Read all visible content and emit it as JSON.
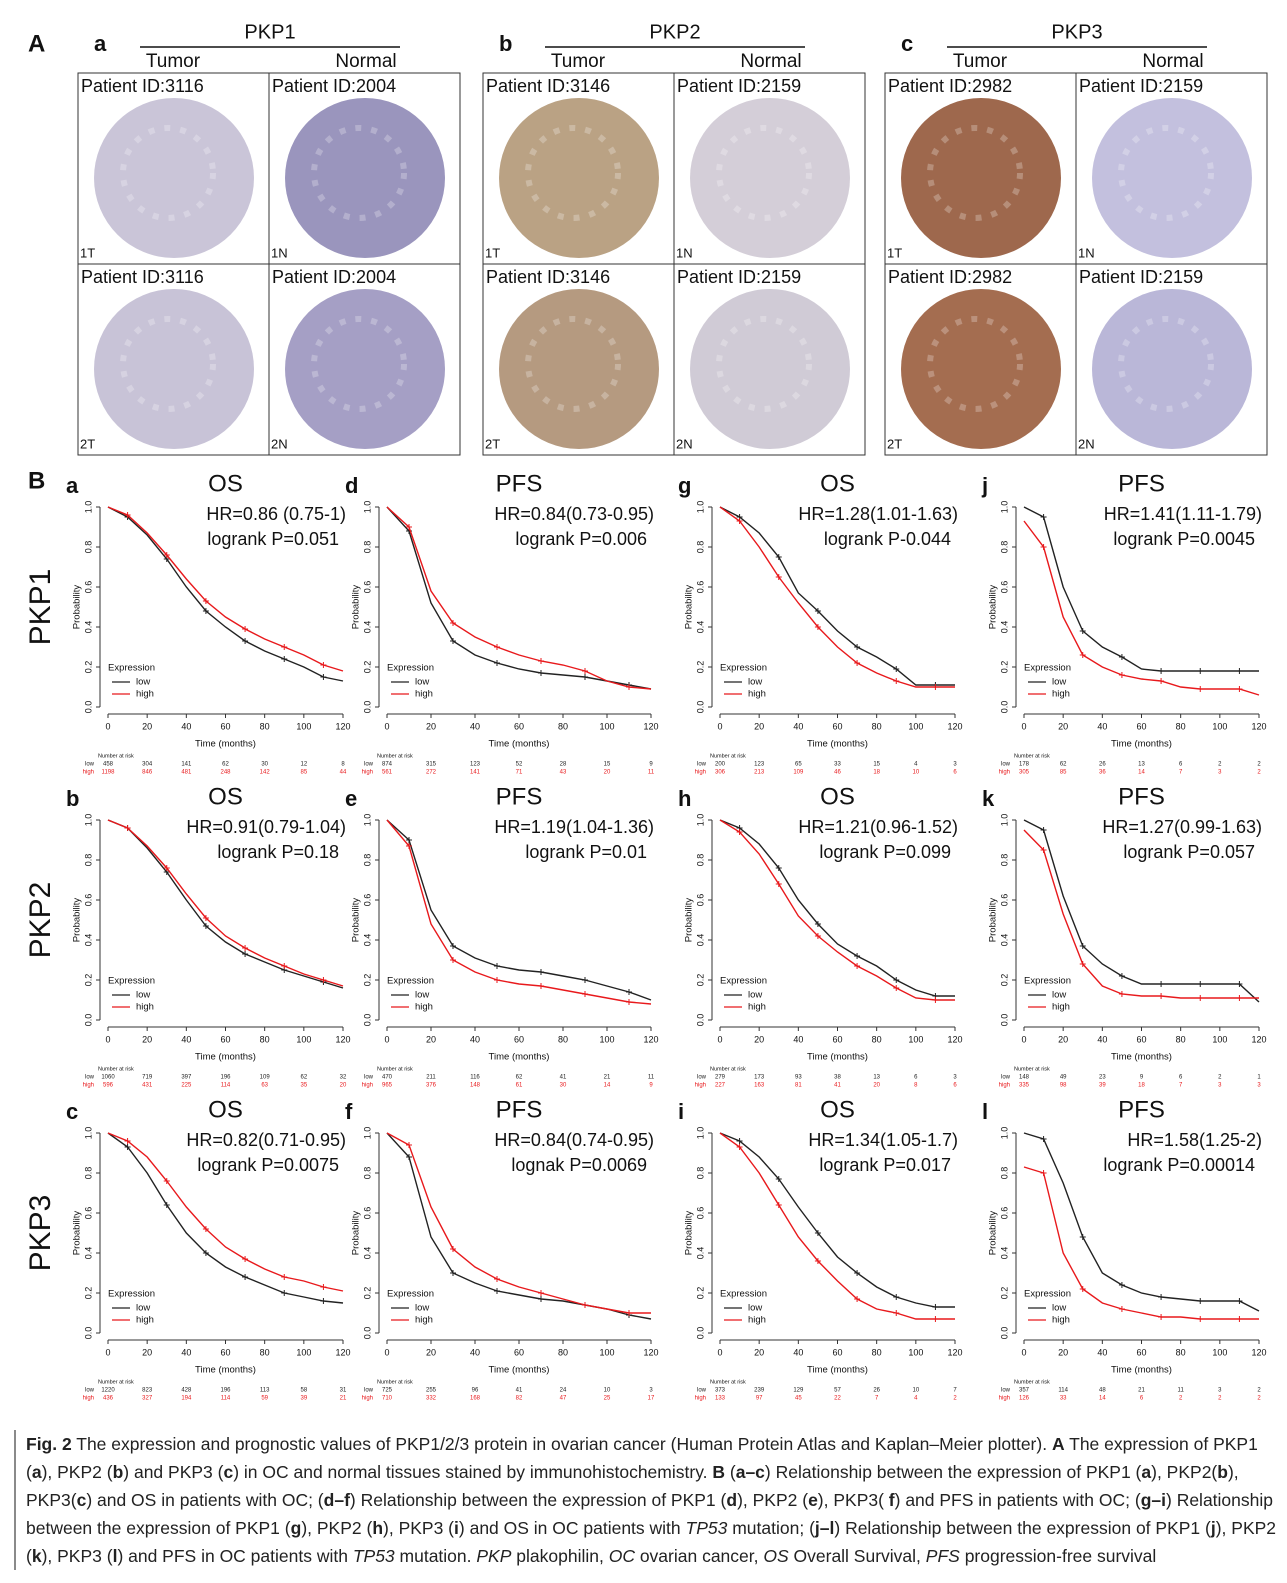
{
  "panel_A": {
    "label": "A",
    "groups": [
      {
        "letter": "a",
        "gene": "PKP1",
        "tumor": "Tumor",
        "normal": "Normal",
        "cells": [
          {
            "patient": "Patient ID:3116",
            "tag": "1T"
          },
          {
            "patient": "Patient ID:2004",
            "tag": "1N"
          },
          {
            "patient": "Patient ID:3116",
            "tag": "2T"
          },
          {
            "patient": "Patient ID:2004",
            "tag": "2N"
          }
        ]
      },
      {
        "letter": "b",
        "gene": "PKP2",
        "tumor": "Tumor",
        "normal": "Normal",
        "cells": [
          {
            "patient": "Patient ID:3146",
            "tag": "1T"
          },
          {
            "patient": "Patient ID:2159",
            "tag": "1N"
          },
          {
            "patient": "Patient ID:3146",
            "tag": "2T"
          },
          {
            "patient": "Patient ID:2159",
            "tag": "2N"
          }
        ]
      },
      {
        "letter": "c",
        "gene": "PKP3",
        "tumor": "Tumor",
        "normal": "Normal",
        "cells": [
          {
            "patient": "Patient ID:2982",
            "tag": "1T"
          },
          {
            "patient": "Patient ID:2159",
            "tag": "1N"
          },
          {
            "patient": "Patient ID:2982",
            "tag": "2T"
          },
          {
            "patient": "Patient ID:2159",
            "tag": "2N"
          }
        ]
      }
    ]
  },
  "panel_B": {
    "label": "B",
    "rows": [
      "PKP1",
      "PKP2",
      "PKP3"
    ]
  },
  "km_common": {
    "x_label": "Time (months)",
    "y_label": "Probability",
    "legend_title": "Expression",
    "risk_title": "Number at risk",
    "xlim": [
      0,
      120
    ],
    "ylim": [
      0,
      1
    ],
    "xticks": [
      0,
      20,
      40,
      60,
      80,
      100,
      120
    ],
    "yticks": [
      {
        "value": 0,
        "label": "0.0"
      },
      0.2,
      0.4,
      0.6,
      0.8,
      {
        "value": 1,
        "label": "1.0"
      }
    ],
    "x": [
      0,
      10,
      20,
      30,
      40,
      50,
      60,
      70,
      80,
      90,
      100,
      110,
      120
    ]
  },
  "chart_data": [
    {
      "type": "line",
      "letter": "a",
      "title": "OS",
      "hr": "HR=0.86 (0.75-1)",
      "p": "logrank P=0.051",
      "series": [
        {
          "name": "low",
          "color": "#222222",
          "values": [
            1,
            0.95,
            0.86,
            0.74,
            0.6,
            0.48,
            0.4,
            0.33,
            0.28,
            0.24,
            0.2,
            0.15,
            0.13
          ],
          "at_risk": [
            458,
            304,
            141,
            62,
            30,
            12,
            8
          ]
        },
        {
          "name": "high",
          "color": "#e8191c",
          "values": [
            1,
            0.96,
            0.87,
            0.76,
            0.64,
            0.53,
            0.45,
            0.39,
            0.34,
            0.3,
            0.26,
            0.21,
            0.18
          ],
          "at_risk": [
            1198,
            846,
            481,
            248,
            142,
            85,
            44
          ]
        }
      ]
    },
    {
      "type": "line",
      "letter": "d",
      "title": "PFS",
      "hr": "HR=0.84(0.73-0.95)",
      "p": "logrank P=0.006",
      "series": [
        {
          "name": "low",
          "color": "#222222",
          "values": [
            1,
            0.88,
            0.52,
            0.33,
            0.26,
            0.22,
            0.19,
            0.17,
            0.16,
            0.15,
            0.13,
            0.11,
            0.09
          ],
          "at_risk": [
            874,
            315,
            123,
            52,
            28,
            15,
            9
          ]
        },
        {
          "name": "high",
          "color": "#e8191c",
          "values": [
            1,
            0.9,
            0.58,
            0.42,
            0.35,
            0.3,
            0.26,
            0.23,
            0.21,
            0.18,
            0.13,
            0.1,
            0.09
          ],
          "at_risk": [
            561,
            272,
            141,
            71,
            43,
            20,
            11
          ]
        }
      ]
    },
    {
      "type": "line",
      "letter": "g",
      "title": "OS",
      "hr": "HR=1.28(1.01-1.63)",
      "p": "logrank P-0.044",
      "series": [
        {
          "name": "low",
          "color": "#222222",
          "values": [
            1,
            0.95,
            0.87,
            0.75,
            0.57,
            0.48,
            0.38,
            0.3,
            0.25,
            0.19,
            0.11,
            0.11,
            0.11
          ],
          "at_risk": [
            200,
            123,
            65,
            33,
            15,
            4,
            3
          ]
        },
        {
          "name": "high",
          "color": "#e8191c",
          "values": [
            1,
            0.93,
            0.8,
            0.65,
            0.52,
            0.4,
            0.3,
            0.22,
            0.17,
            0.13,
            0.1,
            0.1,
            0.1
          ],
          "at_risk": [
            306,
            213,
            109,
            46,
            18,
            10,
            6
          ]
        }
      ]
    },
    {
      "type": "line",
      "letter": "j",
      "title": "PFS",
      "hr": "HR=1.41(1.11-1.79)",
      "p": "logrank P=0.0045",
      "series": [
        {
          "name": "low",
          "color": "#222222",
          "values": [
            1,
            0.95,
            0.6,
            0.38,
            0.3,
            0.25,
            0.19,
            0.18,
            0.18,
            0.18,
            0.18,
            0.18,
            0.18
          ],
          "at_risk": [
            178,
            62,
            26,
            13,
            6,
            2,
            2
          ]
        },
        {
          "name": "high",
          "color": "#e8191c",
          "values": [
            0.93,
            0.8,
            0.45,
            0.26,
            0.2,
            0.16,
            0.14,
            0.13,
            0.1,
            0.09,
            0.09,
            0.09,
            0.06
          ],
          "at_risk": [
            305,
            85,
            36,
            14,
            7,
            3,
            2
          ]
        }
      ]
    },
    {
      "type": "line",
      "letter": "b",
      "title": "OS",
      "hr": "HR=0.91(0.79-1.04)",
      "p": "logrank P=0.18",
      "series": [
        {
          "name": "low",
          "color": "#222222",
          "values": [
            1,
            0.96,
            0.86,
            0.74,
            0.6,
            0.47,
            0.39,
            0.33,
            0.29,
            0.25,
            0.22,
            0.19,
            0.16
          ],
          "at_risk": [
            1060,
            719,
            397,
            196,
            109,
            62,
            32
          ]
        },
        {
          "name": "high",
          "color": "#e8191c",
          "values": [
            1,
            0.96,
            0.87,
            0.76,
            0.63,
            0.51,
            0.42,
            0.36,
            0.31,
            0.27,
            0.23,
            0.2,
            0.17
          ],
          "at_risk": [
            596,
            431,
            225,
            114,
            63,
            35,
            20
          ]
        }
      ]
    },
    {
      "type": "line",
      "letter": "e",
      "title": "PFS",
      "hr": "HR=1.19(1.04-1.36)",
      "p": "logrank P=0.01",
      "series": [
        {
          "name": "low",
          "color": "#222222",
          "values": [
            1,
            0.9,
            0.55,
            0.37,
            0.31,
            0.27,
            0.25,
            0.24,
            0.22,
            0.2,
            0.17,
            0.14,
            0.1
          ],
          "at_risk": [
            470,
            211,
            116,
            62,
            41,
            21,
            11
          ]
        },
        {
          "name": "high",
          "color": "#e8191c",
          "values": [
            1,
            0.87,
            0.48,
            0.3,
            0.24,
            0.2,
            0.18,
            0.17,
            0.15,
            0.13,
            0.11,
            0.09,
            0.08
          ],
          "at_risk": [
            965,
            376,
            148,
            61,
            30,
            14,
            9
          ]
        }
      ]
    },
    {
      "type": "line",
      "letter": "h",
      "title": "OS",
      "hr": "HR=1.21(0.96-1.52)",
      "p": "logrank P=0.099",
      "series": [
        {
          "name": "low",
          "color": "#222222",
          "values": [
            1,
            0.96,
            0.88,
            0.76,
            0.6,
            0.48,
            0.38,
            0.32,
            0.27,
            0.2,
            0.15,
            0.12,
            0.12
          ],
          "at_risk": [
            279,
            173,
            93,
            38,
            13,
            6,
            3
          ]
        },
        {
          "name": "high",
          "color": "#e8191c",
          "values": [
            1,
            0.94,
            0.83,
            0.68,
            0.52,
            0.42,
            0.34,
            0.27,
            0.22,
            0.16,
            0.11,
            0.1,
            0.1
          ],
          "at_risk": [
            227,
            163,
            81,
            41,
            20,
            8,
            6
          ]
        }
      ]
    },
    {
      "type": "line",
      "letter": "k",
      "title": "PFS",
      "hr": "HR=1.27(0.99-1.63)",
      "p": "logrank P=0.057",
      "series": [
        {
          "name": "low",
          "color": "#222222",
          "values": [
            1,
            0.95,
            0.62,
            0.37,
            0.28,
            0.22,
            0.18,
            0.18,
            0.18,
            0.18,
            0.18,
            0.18,
            0.09
          ],
          "at_risk": [
            148,
            49,
            23,
            9,
            6,
            2,
            1
          ]
        },
        {
          "name": "high",
          "color": "#e8191c",
          "values": [
            0.95,
            0.85,
            0.53,
            0.28,
            0.17,
            0.13,
            0.12,
            0.12,
            0.11,
            0.11,
            0.11,
            0.11,
            0.11
          ],
          "at_risk": [
            335,
            98,
            39,
            18,
            7,
            3,
            3
          ]
        }
      ]
    },
    {
      "type": "line",
      "letter": "c",
      "title": "OS",
      "hr": "HR=0.82(0.71-0.95)",
      "p": "logrank P=0.0075",
      "series": [
        {
          "name": "low",
          "color": "#222222",
          "values": [
            1,
            0.93,
            0.8,
            0.64,
            0.5,
            0.4,
            0.33,
            0.28,
            0.24,
            0.2,
            0.18,
            0.16,
            0.15
          ],
          "at_risk": [
            1220,
            823,
            428,
            196,
            113,
            58,
            31
          ]
        },
        {
          "name": "high",
          "color": "#e8191c",
          "values": [
            1,
            0.96,
            0.88,
            0.76,
            0.63,
            0.52,
            0.43,
            0.37,
            0.32,
            0.28,
            0.26,
            0.23,
            0.21
          ],
          "at_risk": [
            436,
            327,
            194,
            114,
            59,
            39,
            21
          ]
        }
      ]
    },
    {
      "type": "line",
      "letter": "f",
      "title": "PFS",
      "hr": "HR=0.84(0.74-0.95)",
      "p": "lognak P=0.0069",
      "series": [
        {
          "name": "low",
          "color": "#222222",
          "values": [
            1,
            0.88,
            0.48,
            0.3,
            0.25,
            0.21,
            0.19,
            0.17,
            0.16,
            0.14,
            0.12,
            0.09,
            0.07
          ],
          "at_risk": [
            725,
            255,
            96,
            41,
            24,
            10,
            3
          ]
        },
        {
          "name": "high",
          "color": "#e8191c",
          "values": [
            1,
            0.94,
            0.63,
            0.42,
            0.33,
            0.27,
            0.23,
            0.2,
            0.17,
            0.14,
            0.12,
            0.1,
            0.1
          ],
          "at_risk": [
            710,
            332,
            168,
            82,
            47,
            25,
            17
          ]
        }
      ]
    },
    {
      "type": "line",
      "letter": "i",
      "title": "OS",
      "hr": "HR=1.34(1.05-1.7)",
      "p": "logrank P=0.017",
      "series": [
        {
          "name": "low",
          "color": "#222222",
          "values": [
            1,
            0.96,
            0.88,
            0.77,
            0.63,
            0.5,
            0.38,
            0.3,
            0.23,
            0.18,
            0.15,
            0.13,
            0.13
          ],
          "at_risk": [
            373,
            239,
            129,
            57,
            26,
            10,
            7
          ]
        },
        {
          "name": "high",
          "color": "#e8191c",
          "values": [
            1,
            0.93,
            0.8,
            0.64,
            0.48,
            0.36,
            0.26,
            0.17,
            0.12,
            0.1,
            0.07,
            0.07,
            0.07
          ],
          "at_risk": [
            133,
            97,
            45,
            22,
            7,
            4,
            2
          ]
        }
      ]
    },
    {
      "type": "line",
      "letter": "l",
      "title": "PFS",
      "hr": "HR=1.58(1.25-2)",
      "p": "logrank P=0.00014",
      "series": [
        {
          "name": "low",
          "color": "#222222",
          "values": [
            1,
            0.97,
            0.75,
            0.48,
            0.3,
            0.24,
            0.2,
            0.18,
            0.17,
            0.16,
            0.16,
            0.16,
            0.11
          ],
          "at_risk": [
            357,
            114,
            48,
            21,
            11,
            3,
            2
          ]
        },
        {
          "name": "high",
          "color": "#e8191c",
          "values": [
            0.83,
            0.8,
            0.4,
            0.22,
            0.15,
            0.12,
            0.1,
            0.08,
            0.08,
            0.07,
            0.07,
            0.07,
            0.07
          ],
          "at_risk": [
            126,
            33,
            14,
            6,
            2,
            2,
            2
          ]
        }
      ]
    }
  ],
  "caption": [
    {
      "text": "Fig. 2",
      "style": "b"
    },
    {
      "text": "  The expression and prognostic values of PKP1/2/3 protein in ovarian cancer (Human Protein Atlas and Kaplan–Meier plotter). "
    },
    {
      "text": "A",
      "style": "b"
    },
    {
      "text": " The expression of PKP1 ("
    },
    {
      "text": "a",
      "style": "b"
    },
    {
      "text": "), PKP2 ("
    },
    {
      "text": "b",
      "style": "b"
    },
    {
      "text": ") and PKP3 ("
    },
    {
      "text": "c",
      "style": "b"
    },
    {
      "text": ") in OC and normal tissues stained by immunohistochemistry. "
    },
    {
      "text": "B",
      "style": "b"
    },
    {
      "text": " ("
    },
    {
      "text": "a–c",
      "style": "b"
    },
    {
      "text": ") Relationship between the expression of PKP1 ("
    },
    {
      "text": "a",
      "style": "b"
    },
    {
      "text": "), PKP2("
    },
    {
      "text": "b",
      "style": "b"
    },
    {
      "text": "), PKP3("
    },
    {
      "text": "c",
      "style": "b"
    },
    {
      "text": ") and OS in patients with OC; ("
    },
    {
      "text": "d–f",
      "style": "b"
    },
    {
      "text": ") Relationship between the expression of PKP1 ("
    },
    {
      "text": "d",
      "style": "b"
    },
    {
      "text": "), PKP2 ("
    },
    {
      "text": "e",
      "style": "b"
    },
    {
      "text": "), PKP3( "
    },
    {
      "text": "f",
      "style": "b"
    },
    {
      "text": ") and PFS in patients with OC; ("
    },
    {
      "text": "g–i",
      "style": "b"
    },
    {
      "text": ") Relationship between the expression of PKP1 ("
    },
    {
      "text": "g",
      "style": "b"
    },
    {
      "text": "), PKP2 ("
    },
    {
      "text": "h",
      "style": "b"
    },
    {
      "text": "), PKP3 ("
    },
    {
      "text": "i",
      "style": "b"
    },
    {
      "text": ") and OS in OC patients with "
    },
    {
      "text": "TP53",
      "style": "i"
    },
    {
      "text": " mutation; ("
    },
    {
      "text": "j–l",
      "style": "b"
    },
    {
      "text": ") Relationship between the expression of PKP1 ("
    },
    {
      "text": "j",
      "style": "b"
    },
    {
      "text": "), PKP2 ("
    },
    {
      "text": "k",
      "style": "b"
    },
    {
      "text": "), PKP3 ("
    },
    {
      "text": "l",
      "style": "b"
    },
    {
      "text": ") and PFS in OC patients with "
    },
    {
      "text": "TP53",
      "style": "i"
    },
    {
      "text": " mutation. "
    },
    {
      "text": "PKP",
      "style": "i"
    },
    {
      "text": " plakophilin, "
    },
    {
      "text": "OC",
      "style": "i"
    },
    {
      "text": " ovarian cancer, "
    },
    {
      "text": "OS",
      "style": "i"
    },
    {
      "text": " Overall Survival, "
    },
    {
      "text": "PFS",
      "style": "i"
    },
    {
      "text": " progression-free survival"
    }
  ]
}
